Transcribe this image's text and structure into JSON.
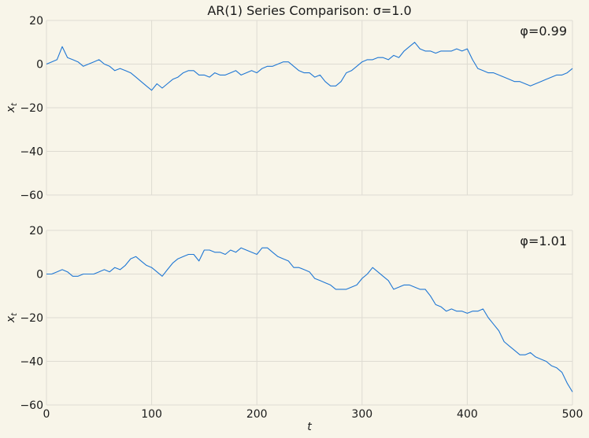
{
  "figure": {
    "title": "AR(1) Series Comparison: σ=1.0",
    "background": "#f8f5e9",
    "line_color": "#1f77d4"
  },
  "chart_data": [
    {
      "type": "line",
      "annotation": "φ=0.99",
      "xlabel": "",
      "ylabel": "x",
      "ylabel_sub": "t",
      "xlim": [
        0,
        500
      ],
      "ylim": [
        -60,
        20
      ],
      "xticks": [
        0,
        100,
        200,
        300,
        400,
        500
      ],
      "yticks": [
        20,
        0,
        -20,
        -40,
        -60
      ],
      "show_xtick_labels": false,
      "grid": true,
      "x": [
        0,
        5,
        10,
        15,
        20,
        25,
        30,
        35,
        40,
        45,
        50,
        55,
        60,
        65,
        70,
        75,
        80,
        85,
        90,
        95,
        100,
        105,
        110,
        115,
        120,
        125,
        130,
        135,
        140,
        145,
        150,
        155,
        160,
        165,
        170,
        175,
        180,
        185,
        190,
        195,
        200,
        205,
        210,
        215,
        220,
        225,
        230,
        235,
        240,
        245,
        250,
        255,
        260,
        265,
        270,
        275,
        280,
        285,
        290,
        295,
        300,
        305,
        310,
        315,
        320,
        325,
        330,
        335,
        340,
        345,
        350,
        355,
        360,
        365,
        370,
        375,
        380,
        385,
        390,
        395,
        400,
        405,
        410,
        415,
        420,
        425,
        430,
        435,
        440,
        445,
        450,
        455,
        460,
        465,
        470,
        475,
        480,
        485,
        490,
        495,
        500
      ],
      "y": [
        0,
        1,
        2,
        8,
        3,
        2,
        1,
        -1,
        0,
        1,
        2,
        0,
        -1,
        -3,
        -2,
        -3,
        -4,
        -6,
        -8,
        -10,
        -12,
        -9,
        -11,
        -9,
        -7,
        -6,
        -4,
        -3,
        -3,
        -5,
        -5,
        -6,
        -4,
        -5,
        -5,
        -4,
        -3,
        -5,
        -4,
        -3,
        -4,
        -2,
        -1,
        -1,
        0,
        1,
        1,
        -1,
        -3,
        -4,
        -4,
        -6,
        -5,
        -8,
        -10,
        -10,
        -8,
        -4,
        -3,
        -1,
        1,
        2,
        2,
        3,
        3,
        2,
        4,
        3,
        6,
        8,
        10,
        7,
        6,
        6,
        5,
        6,
        6,
        6,
        7,
        6,
        7,
        2,
        -2,
        -3,
        -4,
        -4,
        -5,
        -6,
        -7,
        -8,
        -8,
        -9,
        -10,
        -9,
        -8,
        -7,
        -6,
        -5,
        -5,
        -4,
        -2
      ]
    },
    {
      "type": "line",
      "annotation": "φ=1.01",
      "xlabel": "t",
      "ylabel": "x",
      "ylabel_sub": "t",
      "xlim": [
        0,
        500
      ],
      "ylim": [
        -60,
        20
      ],
      "xticks": [
        0,
        100,
        200,
        300,
        400,
        500
      ],
      "yticks": [
        20,
        0,
        -20,
        -40,
        -60
      ],
      "show_xtick_labels": true,
      "grid": true,
      "x": [
        0,
        5,
        10,
        15,
        20,
        25,
        30,
        35,
        40,
        45,
        50,
        55,
        60,
        65,
        70,
        75,
        80,
        85,
        90,
        95,
        100,
        105,
        110,
        115,
        120,
        125,
        130,
        135,
        140,
        145,
        150,
        155,
        160,
        165,
        170,
        175,
        180,
        185,
        190,
        195,
        200,
        205,
        210,
        215,
        220,
        225,
        230,
        235,
        240,
        245,
        250,
        255,
        260,
        265,
        270,
        275,
        280,
        285,
        290,
        295,
        300,
        305,
        310,
        315,
        320,
        325,
        330,
        335,
        340,
        345,
        350,
        355,
        360,
        365,
        370,
        375,
        380,
        385,
        390,
        395,
        400,
        405,
        410,
        415,
        420,
        425,
        430,
        435,
        440,
        445,
        450,
        455,
        460,
        465,
        470,
        475,
        480,
        485,
        490,
        495,
        500
      ],
      "y": [
        0,
        0,
        1,
        2,
        1,
        -1,
        -1,
        0,
        0,
        0,
        1,
        2,
        1,
        3,
        2,
        4,
        7,
        8,
        6,
        4,
        3,
        1,
        -1,
        2,
        5,
        7,
        8,
        9,
        9,
        6,
        11,
        11,
        10,
        10,
        9,
        11,
        10,
        12,
        11,
        10,
        9,
        12,
        12,
        10,
        8,
        7,
        6,
        3,
        3,
        2,
        1,
        -2,
        -3,
        -4,
        -5,
        -7,
        -7,
        -7,
        -6,
        -5,
        -2,
        0,
        3,
        1,
        -1,
        -3,
        -7,
        -6,
        -5,
        -5,
        -6,
        -7,
        -7,
        -10,
        -14,
        -15,
        -17,
        -16,
        -17,
        -17,
        -18,
        -17,
        -17,
        -16,
        -20,
        -23,
        -26,
        -31,
        -33,
        -35,
        -37,
        -37,
        -36,
        -38,
        -39,
        -40,
        -42,
        -43,
        -45,
        -50,
        -54
      ]
    }
  ]
}
